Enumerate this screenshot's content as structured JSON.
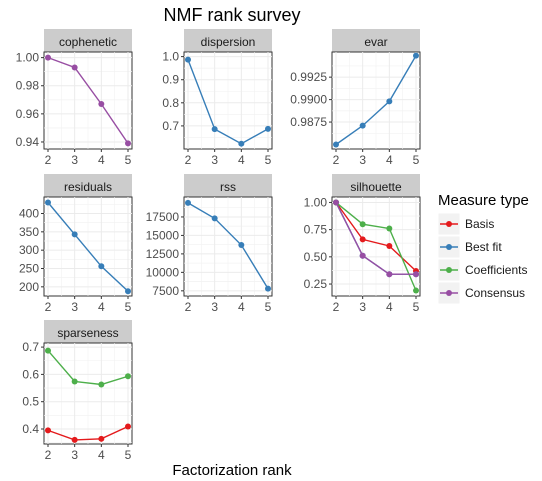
{
  "chart_data": {
    "type": "line",
    "title": "NMF rank survey",
    "xlabel": "Factorization rank",
    "x": [
      2,
      3,
      4,
      5
    ],
    "legend": {
      "title": "Measure type",
      "placement": "right",
      "entries": [
        {
          "name": "Basis",
          "color": "#E41A1C"
        },
        {
          "name": "Best fit",
          "color": "#377EB8"
        },
        {
          "name": "Coefficients",
          "color": "#4DAF4A"
        },
        {
          "name": "Consensus",
          "color": "#984EA3"
        }
      ]
    },
    "grid": true,
    "panels": [
      {
        "name": "cophenetic",
        "ylim": [
          0.935,
          1.004
        ],
        "yticks": [
          "1.00",
          "0.98",
          "0.96",
          "0.94"
        ],
        "series": [
          {
            "name": "Consensus",
            "values": [
              1.0,
              0.993,
              0.967,
              0.939
            ]
          }
        ]
      },
      {
        "name": "dispersion",
        "ylim": [
          0.6,
          1.02
        ],
        "yticks": [
          "1.0",
          "0.9",
          "0.8",
          "0.7"
        ],
        "series": [
          {
            "name": "Best fit",
            "values": [
              0.987,
              0.686,
              0.623,
              0.687
            ]
          }
        ]
      },
      {
        "name": "evar",
        "ylim": [
          0.9845,
          0.9953
        ],
        "yticks": [
          "0.9925",
          "0.9900",
          "0.9875"
        ],
        "series": [
          {
            "name": "Best fit",
            "values": [
              0.985,
              0.9871,
              0.9898,
              0.9949
            ]
          }
        ]
      },
      {
        "name": "residuals",
        "ylim": [
          175,
          445
        ],
        "yticks": [
          "400",
          "350",
          "300",
          "250",
          "200"
        ],
        "series": [
          {
            "name": "Best fit",
            "values": [
              430,
              343,
              256,
              188
            ]
          }
        ]
      },
      {
        "name": "rss",
        "ylim": [
          6800,
          20200
        ],
        "yticks": [
          "17500",
          "15000",
          "12500",
          "10000",
          "7500"
        ],
        "series": [
          {
            "name": "Best fit",
            "values": [
              19400,
              17300,
              13700,
              7800
            ]
          }
        ]
      },
      {
        "name": "silhouette",
        "ylim": [
          0.14,
          1.05
        ],
        "yticks": [
          "1.00",
          "0.75",
          "0.50",
          "0.25"
        ],
        "series": [
          {
            "name": "Basis",
            "values": [
              1.0,
              0.66,
              0.6,
              0.37
            ]
          },
          {
            "name": "Best fit",
            "values": [
              1.0,
              0.51,
              0.34,
              0.34
            ]
          },
          {
            "name": "Coefficients",
            "values": [
              1.0,
              0.8,
              0.76,
              0.19
            ]
          },
          {
            "name": "Consensus",
            "values": [
              1.0,
              0.51,
              0.34,
              0.34
            ]
          }
        ]
      },
      {
        "name": "sparseness",
        "ylim": [
          0.345,
          0.715
        ],
        "yticks": [
          "0.7",
          "0.6",
          "0.5",
          "0.4"
        ],
        "series": [
          {
            "name": "Basis",
            "values": [
              0.395,
              0.36,
              0.364,
              0.409
            ]
          },
          {
            "name": "Coefficients",
            "values": [
              0.687,
              0.574,
              0.563,
              0.593
            ]
          }
        ]
      }
    ]
  }
}
